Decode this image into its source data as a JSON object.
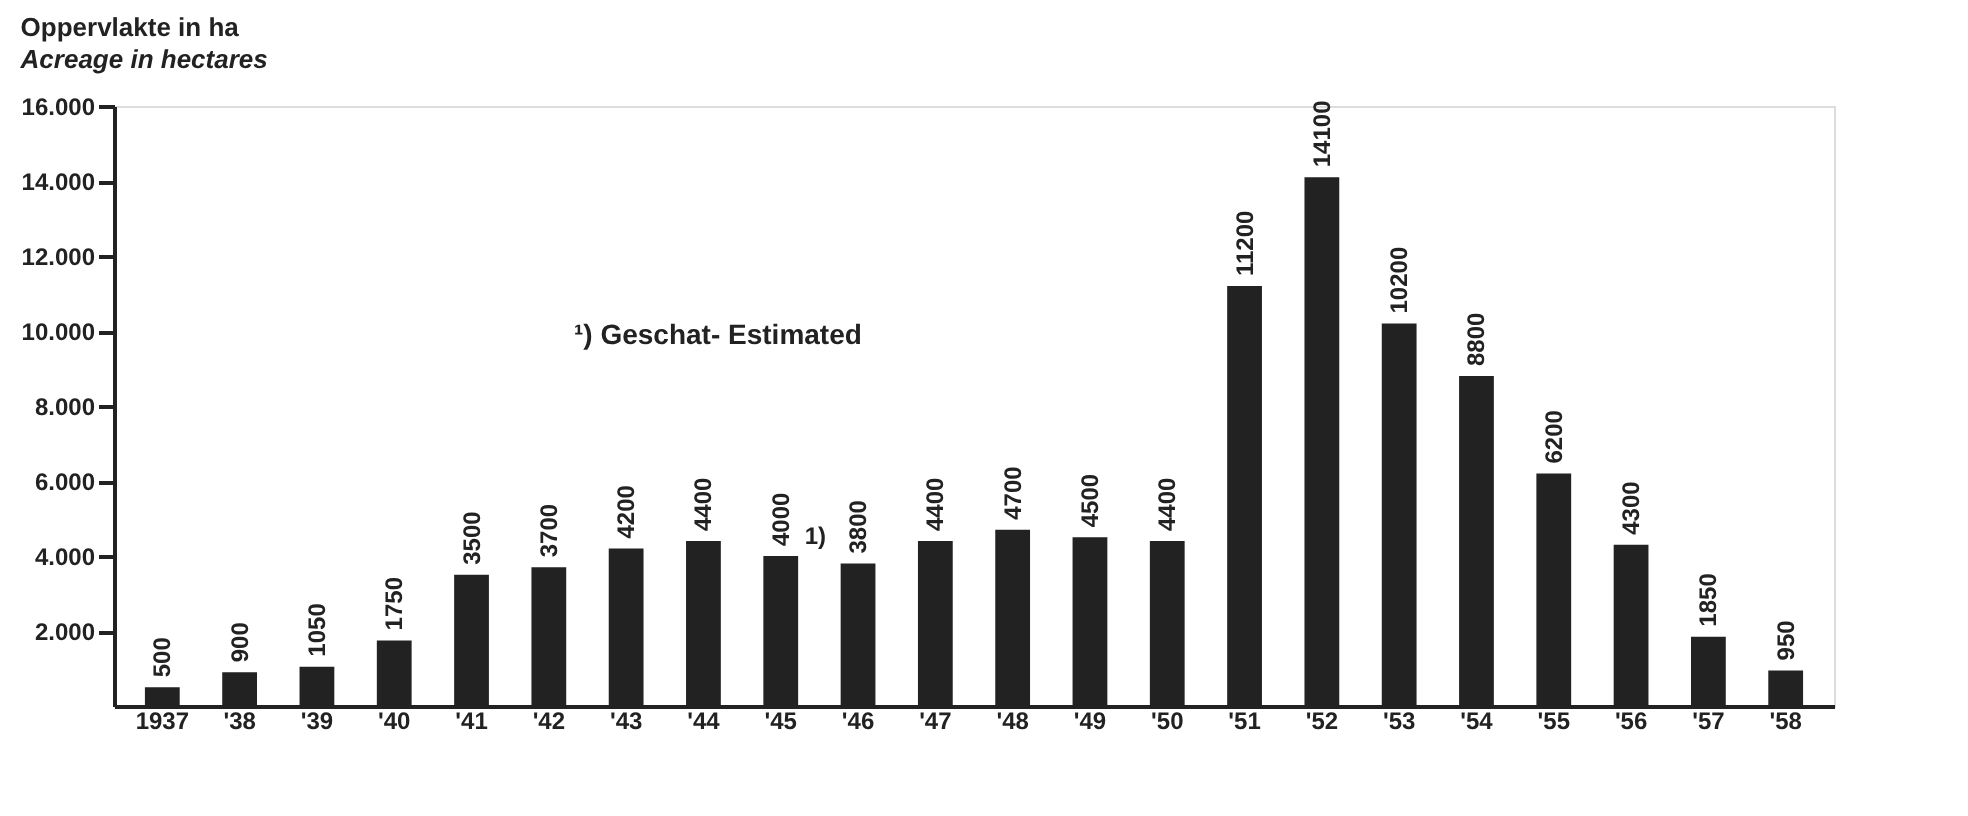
{
  "chart_data": {
    "type": "bar",
    "title": "Oppervlakte in ha",
    "subtitle": "Acreage in hectares",
    "categories": [
      "1937",
      "'38",
      "'39",
      "'40",
      "'41",
      "'42",
      "'43",
      "'44",
      "'45",
      "'46",
      "'47",
      "'48",
      "'49",
      "'50",
      "'51",
      "'52",
      "'53",
      "'54",
      "'55",
      "'56",
      "'57",
      "'58"
    ],
    "values": [
      500,
      900,
      1050,
      1750,
      3500,
      3700,
      4200,
      4400,
      4000,
      3800,
      4400,
      4700,
      4500,
      4400,
      11200,
      14100,
      10200,
      8800,
      6200,
      4300,
      1850,
      950
    ],
    "color": "#222222",
    "data_labels": true,
    "grid": false,
    "ylim": [
      0,
      16000
    ],
    "yticks": [
      {
        "value": 2000,
        "label": "2.000"
      },
      {
        "value": 4000,
        "label": "4.000"
      },
      {
        "value": 6000,
        "label": "6.000"
      },
      {
        "value": 8000,
        "label": "8.000"
      },
      {
        "value": 10000,
        "label": "10.000"
      },
      {
        "value": 12000,
        "label": "12.000"
      },
      {
        "value": 14000,
        "label": "14.000"
      },
      {
        "value": 16000,
        "label": "16.000"
      }
    ],
    "annotations": [
      "¹) Geschat- Estimated",
      {
        "text": "1)",
        "x": "'45",
        "y": 4000
      }
    ]
  }
}
